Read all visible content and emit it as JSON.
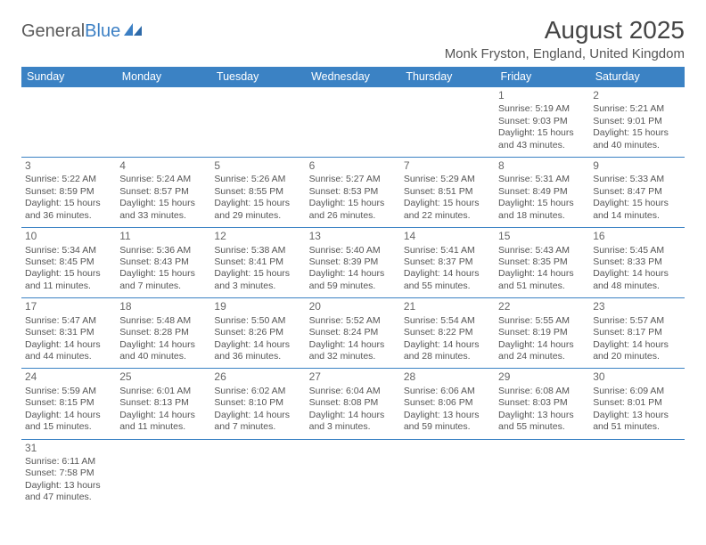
{
  "logo": {
    "text1": "General",
    "text2": "Blue"
  },
  "title": "August 2025",
  "location": "Monk Fryston, England, United Kingdom",
  "colors": {
    "header_bg": "#3b82c4",
    "header_text": "#ffffff",
    "border": "#3b82c4",
    "body_text": "#555555",
    "title_text": "#444444"
  },
  "day_headers": [
    "Sunday",
    "Monday",
    "Tuesday",
    "Wednesday",
    "Thursday",
    "Friday",
    "Saturday"
  ],
  "weeks": [
    [
      null,
      null,
      null,
      null,
      null,
      {
        "n": "1",
        "sr": "Sunrise: 5:19 AM",
        "ss": "Sunset: 9:03 PM",
        "dl1": "Daylight: 15 hours",
        "dl2": "and 43 minutes."
      },
      {
        "n": "2",
        "sr": "Sunrise: 5:21 AM",
        "ss": "Sunset: 9:01 PM",
        "dl1": "Daylight: 15 hours",
        "dl2": "and 40 minutes."
      }
    ],
    [
      {
        "n": "3",
        "sr": "Sunrise: 5:22 AM",
        "ss": "Sunset: 8:59 PM",
        "dl1": "Daylight: 15 hours",
        "dl2": "and 36 minutes."
      },
      {
        "n": "4",
        "sr": "Sunrise: 5:24 AM",
        "ss": "Sunset: 8:57 PM",
        "dl1": "Daylight: 15 hours",
        "dl2": "and 33 minutes."
      },
      {
        "n": "5",
        "sr": "Sunrise: 5:26 AM",
        "ss": "Sunset: 8:55 PM",
        "dl1": "Daylight: 15 hours",
        "dl2": "and 29 minutes."
      },
      {
        "n": "6",
        "sr": "Sunrise: 5:27 AM",
        "ss": "Sunset: 8:53 PM",
        "dl1": "Daylight: 15 hours",
        "dl2": "and 26 minutes."
      },
      {
        "n": "7",
        "sr": "Sunrise: 5:29 AM",
        "ss": "Sunset: 8:51 PM",
        "dl1": "Daylight: 15 hours",
        "dl2": "and 22 minutes."
      },
      {
        "n": "8",
        "sr": "Sunrise: 5:31 AM",
        "ss": "Sunset: 8:49 PM",
        "dl1": "Daylight: 15 hours",
        "dl2": "and 18 minutes."
      },
      {
        "n": "9",
        "sr": "Sunrise: 5:33 AM",
        "ss": "Sunset: 8:47 PM",
        "dl1": "Daylight: 15 hours",
        "dl2": "and 14 minutes."
      }
    ],
    [
      {
        "n": "10",
        "sr": "Sunrise: 5:34 AM",
        "ss": "Sunset: 8:45 PM",
        "dl1": "Daylight: 15 hours",
        "dl2": "and 11 minutes."
      },
      {
        "n": "11",
        "sr": "Sunrise: 5:36 AM",
        "ss": "Sunset: 8:43 PM",
        "dl1": "Daylight: 15 hours",
        "dl2": "and 7 minutes."
      },
      {
        "n": "12",
        "sr": "Sunrise: 5:38 AM",
        "ss": "Sunset: 8:41 PM",
        "dl1": "Daylight: 15 hours",
        "dl2": "and 3 minutes."
      },
      {
        "n": "13",
        "sr": "Sunrise: 5:40 AM",
        "ss": "Sunset: 8:39 PM",
        "dl1": "Daylight: 14 hours",
        "dl2": "and 59 minutes."
      },
      {
        "n": "14",
        "sr": "Sunrise: 5:41 AM",
        "ss": "Sunset: 8:37 PM",
        "dl1": "Daylight: 14 hours",
        "dl2": "and 55 minutes."
      },
      {
        "n": "15",
        "sr": "Sunrise: 5:43 AM",
        "ss": "Sunset: 8:35 PM",
        "dl1": "Daylight: 14 hours",
        "dl2": "and 51 minutes."
      },
      {
        "n": "16",
        "sr": "Sunrise: 5:45 AM",
        "ss": "Sunset: 8:33 PM",
        "dl1": "Daylight: 14 hours",
        "dl2": "and 48 minutes."
      }
    ],
    [
      {
        "n": "17",
        "sr": "Sunrise: 5:47 AM",
        "ss": "Sunset: 8:31 PM",
        "dl1": "Daylight: 14 hours",
        "dl2": "and 44 minutes."
      },
      {
        "n": "18",
        "sr": "Sunrise: 5:48 AM",
        "ss": "Sunset: 8:28 PM",
        "dl1": "Daylight: 14 hours",
        "dl2": "and 40 minutes."
      },
      {
        "n": "19",
        "sr": "Sunrise: 5:50 AM",
        "ss": "Sunset: 8:26 PM",
        "dl1": "Daylight: 14 hours",
        "dl2": "and 36 minutes."
      },
      {
        "n": "20",
        "sr": "Sunrise: 5:52 AM",
        "ss": "Sunset: 8:24 PM",
        "dl1": "Daylight: 14 hours",
        "dl2": "and 32 minutes."
      },
      {
        "n": "21",
        "sr": "Sunrise: 5:54 AM",
        "ss": "Sunset: 8:22 PM",
        "dl1": "Daylight: 14 hours",
        "dl2": "and 28 minutes."
      },
      {
        "n": "22",
        "sr": "Sunrise: 5:55 AM",
        "ss": "Sunset: 8:19 PM",
        "dl1": "Daylight: 14 hours",
        "dl2": "and 24 minutes."
      },
      {
        "n": "23",
        "sr": "Sunrise: 5:57 AM",
        "ss": "Sunset: 8:17 PM",
        "dl1": "Daylight: 14 hours",
        "dl2": "and 20 minutes."
      }
    ],
    [
      {
        "n": "24",
        "sr": "Sunrise: 5:59 AM",
        "ss": "Sunset: 8:15 PM",
        "dl1": "Daylight: 14 hours",
        "dl2": "and 15 minutes."
      },
      {
        "n": "25",
        "sr": "Sunrise: 6:01 AM",
        "ss": "Sunset: 8:13 PM",
        "dl1": "Daylight: 14 hours",
        "dl2": "and 11 minutes."
      },
      {
        "n": "26",
        "sr": "Sunrise: 6:02 AM",
        "ss": "Sunset: 8:10 PM",
        "dl1": "Daylight: 14 hours",
        "dl2": "and 7 minutes."
      },
      {
        "n": "27",
        "sr": "Sunrise: 6:04 AM",
        "ss": "Sunset: 8:08 PM",
        "dl1": "Daylight: 14 hours",
        "dl2": "and 3 minutes."
      },
      {
        "n": "28",
        "sr": "Sunrise: 6:06 AM",
        "ss": "Sunset: 8:06 PM",
        "dl1": "Daylight: 13 hours",
        "dl2": "and 59 minutes."
      },
      {
        "n": "29",
        "sr": "Sunrise: 6:08 AM",
        "ss": "Sunset: 8:03 PM",
        "dl1": "Daylight: 13 hours",
        "dl2": "and 55 minutes."
      },
      {
        "n": "30",
        "sr": "Sunrise: 6:09 AM",
        "ss": "Sunset: 8:01 PM",
        "dl1": "Daylight: 13 hours",
        "dl2": "and 51 minutes."
      }
    ],
    [
      {
        "n": "31",
        "sr": "Sunrise: 6:11 AM",
        "ss": "Sunset: 7:58 PM",
        "dl1": "Daylight: 13 hours",
        "dl2": "and 47 minutes."
      },
      null,
      null,
      null,
      null,
      null,
      null
    ]
  ]
}
